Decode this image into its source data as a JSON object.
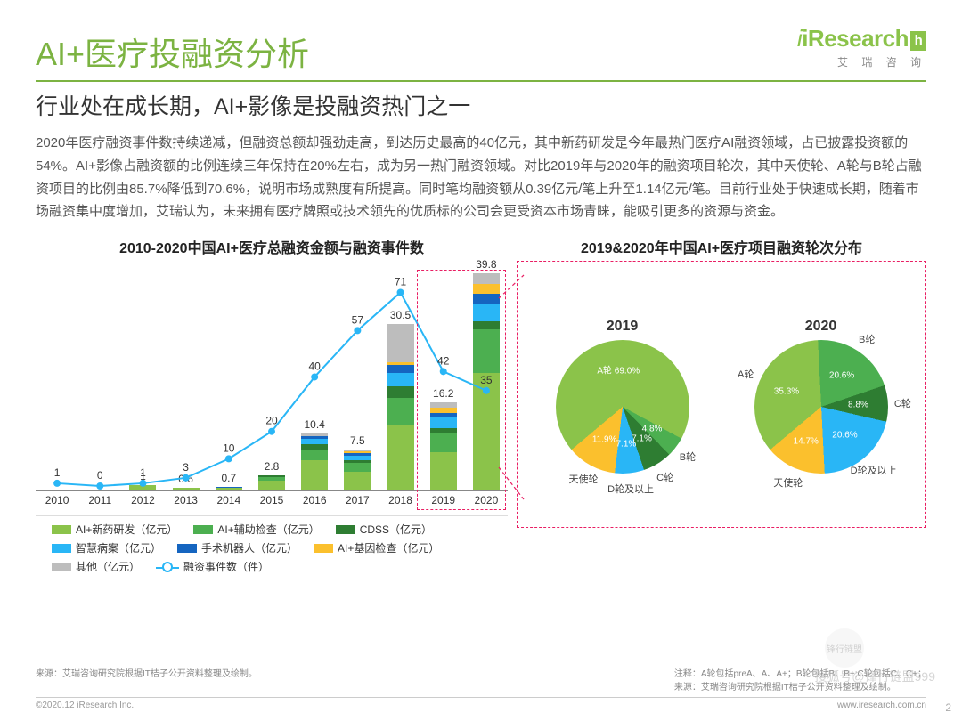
{
  "brand": {
    "name": "iResearch",
    "accent": "h",
    "sub": "艾 瑞 咨 询"
  },
  "title": "AI+医疗投融资分析",
  "subtitle": "行业处在成长期，AI+影像是投融资热门之一",
  "body": "2020年医疗融资事件数持续递减，但融资总额却强劲走高，到达历史最高的40亿元，其中新药研发是今年最热门医疗AI融资领域，占已披露投资额的54%。AI+影像占融资额的比例连续三年保持在20%左右，成为另一热门融资领域。对比2019年与2020年的融资项目轮次，其中天使轮、A轮与B轮占融资项目的比例由85.7%降低到70.6%，说明市场成熟度有所提高。同时笔均融资额从0.39亿元/笔上升至1.14亿元/笔。目前行业处于快速成长期，随着市场融资集中度增加，艾瑞认为，未来拥有医疗牌照或技术领先的优质标的公司会更受资本市场青睐，能吸引更多的资源与资金。",
  "left_chart": {
    "title": "2010-2020中国AI+医疗总融资金额与融资事件数",
    "type": "stacked-bar + line",
    "years": [
      "2010",
      "2011",
      "2012",
      "2013",
      "2014",
      "2015",
      "2016",
      "2017",
      "2018",
      "2019",
      "2020"
    ],
    "bar_totals": [
      null,
      null,
      "1",
      "0.6",
      "0.7",
      "2.8",
      "10.4",
      "7.5",
      "30.5",
      "16.2",
      "39.8"
    ],
    "bar_total_values": [
      0,
      0,
      1,
      0.6,
      0.7,
      2.8,
      10.4,
      7.5,
      30.5,
      16.2,
      39.8
    ],
    "y_bar_max": 42,
    "stacks": {
      "2010": [],
      "2011": [],
      "2012": [
        {
          "c": "#8bc34a",
          "v": 1.0
        }
      ],
      "2013": [
        {
          "c": "#8bc34a",
          "v": 0.6
        }
      ],
      "2014": [
        {
          "c": "#8bc34a",
          "v": 0.5
        },
        {
          "c": "#1565c0",
          "v": 0.2
        }
      ],
      "2015": [
        {
          "c": "#8bc34a",
          "v": 1.8
        },
        {
          "c": "#4caf50",
          "v": 0.6
        },
        {
          "c": "#2e7d32",
          "v": 0.4
        }
      ],
      "2016": [
        {
          "c": "#8bc34a",
          "v": 5.5
        },
        {
          "c": "#4caf50",
          "v": 2.0
        },
        {
          "c": "#2e7d32",
          "v": 1.0
        },
        {
          "c": "#29b6f6",
          "v": 1.0
        },
        {
          "c": "#1565c0",
          "v": 0.5
        },
        {
          "c": "#bdbdbd",
          "v": 0.4
        }
      ],
      "2017": [
        {
          "c": "#8bc34a",
          "v": 3.5
        },
        {
          "c": "#4caf50",
          "v": 1.5
        },
        {
          "c": "#2e7d32",
          "v": 0.6
        },
        {
          "c": "#29b6f6",
          "v": 0.8
        },
        {
          "c": "#1565c0",
          "v": 0.5
        },
        {
          "c": "#fbc02d",
          "v": 0.3
        },
        {
          "c": "#bdbdbd",
          "v": 0.3
        }
      ],
      "2018": [
        {
          "c": "#8bc34a",
          "v": 12.0
        },
        {
          "c": "#4caf50",
          "v": 5.0
        },
        {
          "c": "#2e7d32",
          "v": 2.0
        },
        {
          "c": "#29b6f6",
          "v": 2.5
        },
        {
          "c": "#1565c0",
          "v": 1.5
        },
        {
          "c": "#fbc02d",
          "v": 0.5
        },
        {
          "c": "#bdbdbd",
          "v": 7.0
        }
      ],
      "2019": [
        {
          "c": "#8bc34a",
          "v": 7.0
        },
        {
          "c": "#4caf50",
          "v": 3.5
        },
        {
          "c": "#2e7d32",
          "v": 1.0
        },
        {
          "c": "#29b6f6",
          "v": 2.0
        },
        {
          "c": "#1565c0",
          "v": 0.7
        },
        {
          "c": "#fbc02d",
          "v": 1.0
        },
        {
          "c": "#bdbdbd",
          "v": 1.0
        }
      ],
      "2020": [
        {
          "c": "#8bc34a",
          "v": 21.5
        },
        {
          "c": "#4caf50",
          "v": 8.0
        },
        {
          "c": "#2e7d32",
          "v": 1.5
        },
        {
          "c": "#29b6f6",
          "v": 3.0
        },
        {
          "c": "#1565c0",
          "v": 2.0
        },
        {
          "c": "#fbc02d",
          "v": 1.8
        },
        {
          "c": "#bdbdbd",
          "v": 2.0
        }
      ]
    },
    "line_values": [
      1,
      0,
      1,
      3,
      10,
      20,
      40,
      57,
      71,
      42,
      35
    ],
    "line_y_max": 80,
    "line_color": "#29b6f6",
    "legend": [
      {
        "color": "#8bc34a",
        "label": "AI+新药研发（亿元）"
      },
      {
        "color": "#4caf50",
        "label": "AI+辅助检查（亿元）"
      },
      {
        "color": "#2e7d32",
        "label": "CDSS（亿元）"
      },
      {
        "color": "#29b6f6",
        "label": "智慧病案（亿元）"
      },
      {
        "color": "#1565c0",
        "label": "手术机器人（亿元）"
      },
      {
        "color": "#fbc02d",
        "label": "AI+基因检查（亿元）"
      },
      {
        "color": "#bdbdbd",
        "label": "其他（亿元）"
      },
      {
        "type": "line",
        "label": "融资事件数（件）"
      }
    ]
  },
  "right_chart": {
    "title": "2019&2020年中国AI+医疗项目融资轮次分布",
    "pies": [
      {
        "year": "2019",
        "slices": [
          {
            "label": "A轮",
            "value": 69.0,
            "color": "#8bc34a",
            "text": "A轮 69.0%"
          },
          {
            "label": "B轮",
            "value": 4.8,
            "color": "#4caf50",
            "text": "4.8%"
          },
          {
            "label": "C轮",
            "value": 7.1,
            "color": "#2e7d32",
            "text": "7.1%"
          },
          {
            "label": "D轮及以上",
            "value": 7.1,
            "color": "#29b6f6",
            "text": "7.1%"
          },
          {
            "label": "天使轮",
            "value": 11.9,
            "color": "#fbc02d",
            "text": "11.9%"
          }
        ],
        "outer_labels": [
          "天使轮",
          "D轮及以上",
          "C轮",
          "B轮",
          "A轮 69.0%"
        ]
      },
      {
        "year": "2020",
        "slices": [
          {
            "label": "A轮",
            "value": 35.3,
            "color": "#8bc34a",
            "text": "35.3%"
          },
          {
            "label": "B轮",
            "value": 20.6,
            "color": "#4caf50",
            "text": "20.6%"
          },
          {
            "label": "C轮",
            "value": 8.8,
            "color": "#2e7d32",
            "text": "8.8%"
          },
          {
            "label": "D轮及以上",
            "value": 20.6,
            "color": "#29b6f6",
            "text": "20.6%"
          },
          {
            "label": "天使轮",
            "value": 14.7,
            "color": "#fbc02d",
            "text": "14.7%"
          }
        ],
        "outer_labels": [
          "天使轮",
          "D轮及以上",
          "C轮",
          "B轮",
          "A轮"
        ]
      }
    ]
  },
  "footnote_left": "来源：艾瑞咨询研究院根据IT桔子公开资料整理及绘制。",
  "footnote_right_1": "注释：A轮包括preA、A、A+；B轮包括B、B+;C轮包括C、C+；",
  "footnote_right_2": "来源：艾瑞咨询研究院根据IT桔子公开资料整理及绘制。",
  "copyright_left": "©2020.12 iResearch Inc.",
  "copyright_right": "www.iresearch.com.cn",
  "watermark": "搜狐号@锋行链盟999",
  "wm_circle": "锋行链盟",
  "page_number": "2"
}
